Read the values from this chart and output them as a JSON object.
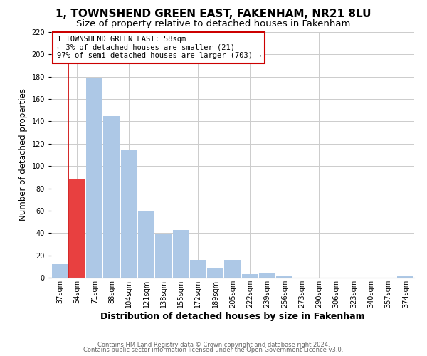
{
  "title": "1, TOWNSHEND GREEN EAST, FAKENHAM, NR21 8LU",
  "subtitle": "Size of property relative to detached houses in Fakenham",
  "xlabel": "Distribution of detached houses by size in Fakenham",
  "ylabel": "Number of detached properties",
  "bar_labels": [
    "37sqm",
    "54sqm",
    "71sqm",
    "88sqm",
    "104sqm",
    "121sqm",
    "138sqm",
    "155sqm",
    "172sqm",
    "189sqm",
    "205sqm",
    "222sqm",
    "239sqm",
    "256sqm",
    "273sqm",
    "290sqm",
    "306sqm",
    "323sqm",
    "340sqm",
    "357sqm",
    "374sqm"
  ],
  "bar_values": [
    12,
    88,
    179,
    145,
    115,
    60,
    39,
    43,
    16,
    9,
    16,
    3,
    4,
    1,
    0,
    0,
    0,
    0,
    0,
    0,
    2
  ],
  "bar_color": "#adc8e6",
  "highlight_bar_index": 1,
  "highlight_bar_color": "#e84040",
  "ylim": [
    0,
    220
  ],
  "annotation_text_line1": "1 TOWNSHEND GREEN EAST: 58sqm",
  "annotation_text_line2": "← 3% of detached houses are smaller (21)",
  "annotation_text_line3": "97% of semi-detached houses are larger (703) →",
  "annotation_box_color": "#ffffff",
  "annotation_box_edge": "#cc0000",
  "footer_line1": "Contains HM Land Registry data © Crown copyright and database right 2024.",
  "footer_line2": "Contains public sector information licensed under the Open Government Licence v3.0.",
  "background_color": "#ffffff",
  "grid_color": "#cccccc",
  "title_fontsize": 11,
  "subtitle_fontsize": 9.5,
  "xlabel_fontsize": 9,
  "ylabel_fontsize": 8.5,
  "footer_fontsize": 6,
  "tick_fontsize": 7,
  "annot_fontsize": 7.5
}
